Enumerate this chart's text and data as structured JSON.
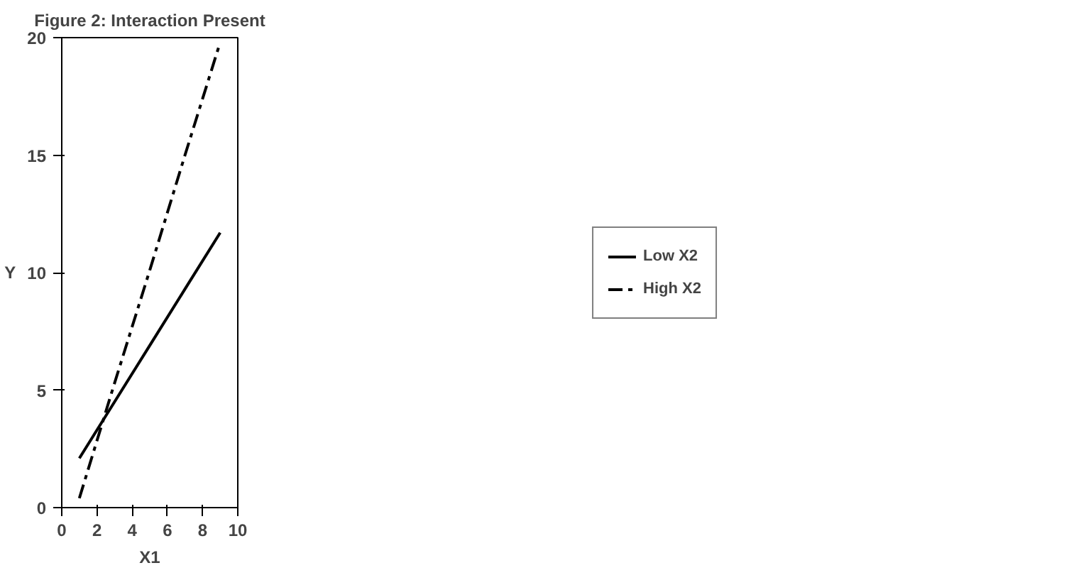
{
  "chart_data": {
    "type": "line",
    "title": "Figure 2: Interaction Present",
    "xlabel": "X1",
    "ylabel": "Y",
    "x": [
      1,
      3,
      5,
      7,
      9
    ],
    "series": [
      {
        "name": "Low X2",
        "color": "#000000",
        "line_style": "solid",
        "values": [
          2.1,
          4.5,
          6.9,
          9.3,
          11.7
        ]
      },
      {
        "name": "High X2",
        "color": "#000000",
        "line_style": "dashed",
        "values": [
          0.4,
          5.3,
          10.1,
          15.0,
          19.8
        ]
      }
    ],
    "xlim": [
      0,
      10
    ],
    "xticks": [
      0,
      2,
      4,
      6,
      8,
      10
    ],
    "ylim": [
      0,
      20
    ],
    "yticks": [
      0,
      5,
      10,
      15,
      20
    ],
    "grid": false,
    "legend": "right",
    "marker": "none"
  }
}
